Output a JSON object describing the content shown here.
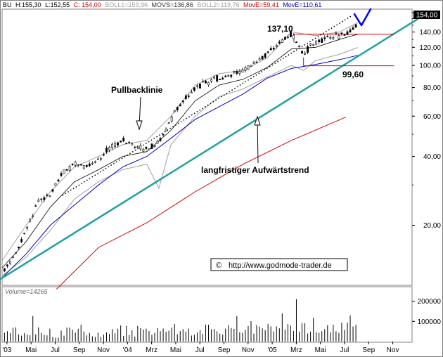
{
  "header": {
    "title": "BU",
    "high": "H:155,30",
    "low": "L:152,55",
    "close": "C: 154,00",
    "boll1": "BOLL1=153,96",
    "movs": "MOVS=136,86",
    "boll2": "BOLL2=119,76",
    "move1": "MovE=59,41",
    "move2": "MovE=110,61"
  },
  "price_box": "154,00",
  "volume_label": "Volume=14265",
  "copyright": "http://www.godmode-trader.de",
  "annotations": {
    "pullback": "Pullbacklinie",
    "trend": "langfristiger Aufwärtstrend",
    "high_level": "137,10",
    "low_level": "99,60"
  },
  "colors": {
    "trend_line": "#20a0a0",
    "move_red": "#d00000",
    "move_blue": "#0000c0",
    "bollinger": "#a0a0a0",
    "movs": "#000000",
    "candle": "#000000",
    "level_line": "#d00000",
    "check_mark": "#0000ff"
  },
  "chart_data": {
    "type": "line",
    "scale": "log",
    "ylim": [
      11,
      175
    ],
    "y_ticks": [
      {
        "value": 140,
        "label": "140,00"
      },
      {
        "value": 120,
        "label": "120,00"
      },
      {
        "value": 100,
        "label": "100,00"
      },
      {
        "value": 80,
        "label": "80,00"
      },
      {
        "value": 60,
        "label": "60,00"
      },
      {
        "value": 40,
        "label": "40,00"
      },
      {
        "value": 20,
        "label": "20,00"
      }
    ],
    "x_ticks": [
      "'03",
      "Mai",
      "Jul",
      "Sep",
      "Nov",
      "'04",
      "Mrz",
      "Mai",
      "Jul",
      "Sep",
      "Nov",
      "'05",
      "Mrz",
      "Mai",
      "Jul",
      "Sep",
      "Nov"
    ],
    "xlim": [
      0,
      34
    ],
    "price_close": [
      [
        0,
        12.5
      ],
      [
        1,
        14.5
      ],
      [
        2,
        19.0
      ],
      [
        3,
        25.5
      ],
      [
        4,
        27.5
      ],
      [
        5,
        34.0
      ],
      [
        6,
        36.5
      ],
      [
        7,
        36.0
      ],
      [
        8,
        39.0
      ],
      [
        9,
        44.0
      ],
      [
        10,
        47.0
      ],
      [
        11,
        45.0
      ],
      [
        12,
        43.0
      ],
      [
        13,
        46.0
      ],
      [
        14,
        58.0
      ],
      [
        15,
        70.0
      ],
      [
        16,
        80.0
      ],
      [
        17,
        85.0
      ],
      [
        18,
        88.0
      ],
      [
        19,
        91.0
      ],
      [
        20,
        95.0
      ],
      [
        21,
        103.0
      ],
      [
        22,
        112.0
      ],
      [
        23,
        125.0
      ],
      [
        24,
        137.0
      ],
      [
        25,
        112.0
      ],
      [
        26,
        128.0
      ],
      [
        27,
        132.0
      ],
      [
        28,
        136.0
      ],
      [
        29,
        140.0
      ],
      [
        29.5,
        154.0
      ]
    ],
    "series": [
      {
        "name": "MovE=59,41",
        "values": [
          [
            4.5,
            10.5
          ],
          [
            8,
            16.0
          ],
          [
            12,
            20.5
          ],
          [
            16,
            28.0
          ],
          [
            20,
            37.0
          ],
          [
            24,
            47.0
          ],
          [
            28.5,
            59.4
          ]
        ]
      },
      {
        "name": "MovE=110,61",
        "values": [
          [
            0,
            11.8
          ],
          [
            2,
            15.0
          ],
          [
            4,
            20.0
          ],
          [
            6,
            24.5
          ],
          [
            8,
            30.0
          ],
          [
            10,
            36.0
          ],
          [
            12,
            40.0
          ],
          [
            14,
            48.0
          ],
          [
            16,
            58.0
          ],
          [
            18,
            66.0
          ],
          [
            20,
            75.0
          ],
          [
            22,
            88.0
          ],
          [
            24,
            97.0
          ],
          [
            26,
            101.0
          ],
          [
            28,
            106.0
          ],
          [
            29.5,
            110.6
          ]
        ]
      },
      {
        "name": "MOVS=136,86",
        "values": [
          [
            0,
            13.0
          ],
          [
            2,
            17.0
          ],
          [
            4,
            24.0
          ],
          [
            6,
            31.0
          ],
          [
            8,
            35.0
          ],
          [
            10,
            40.0
          ],
          [
            12,
            42.0
          ],
          [
            14,
            52.0
          ],
          [
            16,
            70.0
          ],
          [
            18,
            82.0
          ],
          [
            20,
            87.0
          ],
          [
            22,
            98.0
          ],
          [
            24,
            118.0
          ],
          [
            26,
            120.0
          ],
          [
            28,
            130.0
          ],
          [
            29.5,
            136.9
          ]
        ]
      },
      {
        "name": "BOLL1=153,96",
        "values": [
          [
            0,
            14.0
          ],
          [
            2,
            20.0
          ],
          [
            4,
            28.0
          ],
          [
            6,
            36.0
          ],
          [
            8,
            40.0
          ],
          [
            10,
            45.0
          ],
          [
            12,
            47.0
          ],
          [
            14,
            60.0
          ],
          [
            16,
            82.0
          ],
          [
            18,
            92.0
          ],
          [
            20,
            95.0
          ],
          [
            22,
            108.0
          ],
          [
            24,
            140.0
          ],
          [
            26,
            135.0
          ],
          [
            28,
            140.0
          ],
          [
            29.5,
            154.0
          ]
        ]
      },
      {
        "name": "BOLL2=119,76",
        "values": [
          [
            0,
            12.0
          ],
          [
            2,
            14.5
          ],
          [
            4,
            19.0
          ],
          [
            6,
            26.0
          ],
          [
            8,
            31.0
          ],
          [
            10,
            35.0
          ],
          [
            12,
            37.0
          ],
          [
            13,
            29.0
          ],
          [
            14,
            45.0
          ],
          [
            16,
            60.0
          ],
          [
            18,
            73.0
          ],
          [
            20,
            79.0
          ],
          [
            22,
            89.0
          ],
          [
            24,
            100.0
          ],
          [
            25,
            95.0
          ],
          [
            26,
            105.0
          ],
          [
            28,
            112.0
          ],
          [
            29.5,
            119.8
          ]
        ]
      }
    ],
    "trend_line": [
      [
        -0.3,
        11.5
      ],
      [
        34.5,
        160.0
      ]
    ],
    "pullback_line": [
      [
        5,
        27.0
      ],
      [
        29,
        165.0
      ]
    ],
    "levels": [
      {
        "value": 137.1,
        "x_from": 24.2,
        "x_to": 32.5
      },
      {
        "value": 99.6,
        "x_from": 25.0,
        "x_to": 32.5
      }
    ],
    "volume": {
      "ylim": [
        0,
        230000
      ],
      "y_ticks": [
        {
          "value": 200000,
          "label": "200000"
        },
        {
          "value": 100000,
          "label": "100000"
        }
      ],
      "peak": [
        24.5,
        210000
      ]
    }
  }
}
